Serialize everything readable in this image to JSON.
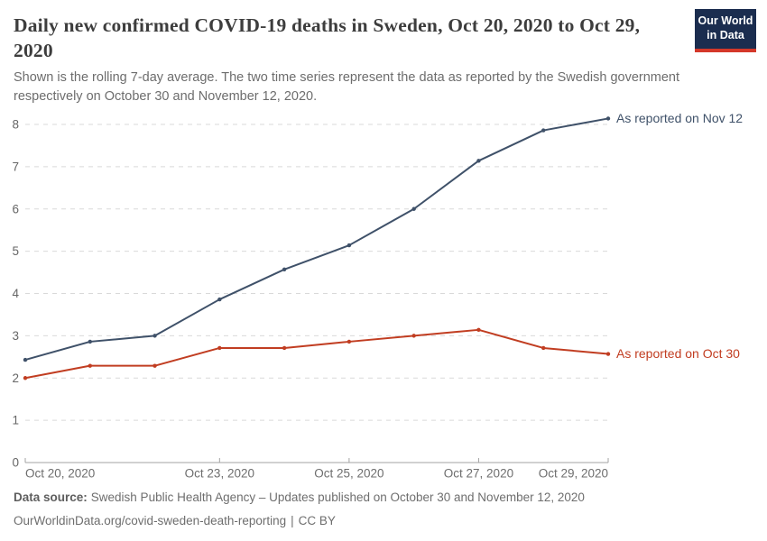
{
  "header": {
    "title": "Daily new confirmed COVID-19 deaths in Sweden, Oct 20, 2020 to Oct 29, 2020",
    "logo": {
      "line1": "Our World",
      "line2": "in Data"
    }
  },
  "subtitle": "Shown is the rolling 7-day average. The two time series represent the data as reported by the Swedish government respectively on October 30 and November 12, 2020.",
  "chart_data": {
    "type": "line",
    "x": [
      "Oct 20, 2020",
      "Oct 21, 2020",
      "Oct 22, 2020",
      "Oct 23, 2020",
      "Oct 24, 2020",
      "Oct 25, 2020",
      "Oct 26, 2020",
      "Oct 27, 2020",
      "Oct 28, 2020",
      "Oct 29, 2020"
    ],
    "series": [
      {
        "name": "As reported on Nov 12",
        "color": "#3f5169",
        "values": [
          2.43,
          2.86,
          3.0,
          3.86,
          4.57,
          5.14,
          6.0,
          7.14,
          7.86,
          8.14
        ]
      },
      {
        "name": "As reported on Oct 30",
        "color": "#c13d21",
        "values": [
          2.0,
          2.29,
          2.29,
          2.71,
          2.71,
          2.86,
          3.0,
          3.14,
          2.71,
          2.57
        ]
      }
    ],
    "yticks": [
      0,
      1,
      2,
      3,
      4,
      5,
      6,
      7,
      8
    ],
    "ylim": [
      0,
      8
    ],
    "xtick_indices": [
      0,
      3,
      5,
      7,
      9
    ],
    "xtick_labels": [
      "Oct 20, 2020",
      "Oct 23, 2020",
      "Oct 25, 2020",
      "Oct 27, 2020",
      "Oct 29, 2020"
    ],
    "grid": "horizontal-dashed",
    "legend_position": "right-of-line-ends",
    "title": "Daily new confirmed COVID-19 deaths in Sweden, Oct 20, 2020 to Oct 29, 2020",
    "xlabel": "",
    "ylabel": ""
  },
  "colors": {
    "logo_background": "#1b2d4f",
    "logo_stripe": "#d4382a",
    "gridline": "#d9d9d9",
    "axis_line": "#a3a3a3",
    "axis_text": "#666666"
  },
  "footer": {
    "datasource_label": "Data source:",
    "datasource_text": "Swedish Public Health Agency – Updates published on October 30 and November 12, 2020",
    "url": "OurWorldinData.org/covid-sweden-death-reporting",
    "separator": "|",
    "license": "CC BY"
  }
}
